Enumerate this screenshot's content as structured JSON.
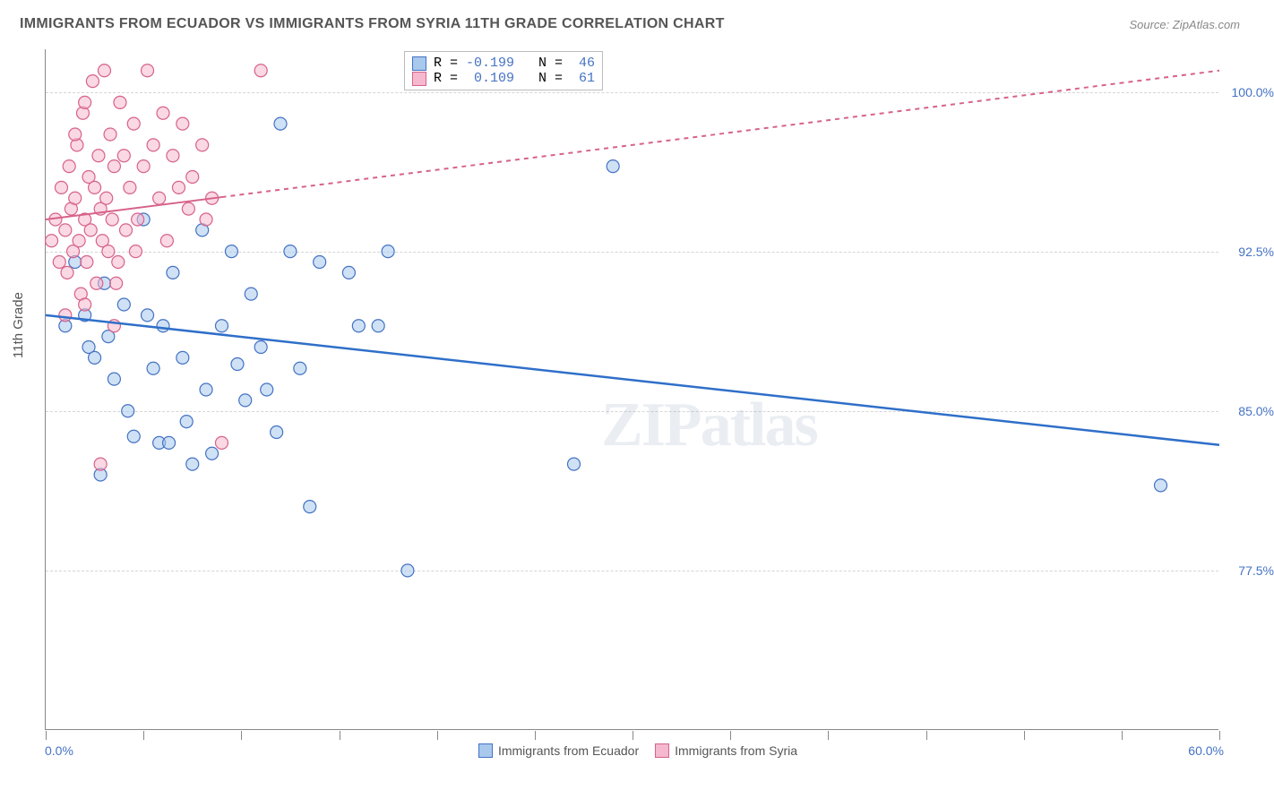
{
  "chart": {
    "title": "IMMIGRANTS FROM ECUADOR VS IMMIGRANTS FROM SYRIA 11TH GRADE CORRELATION CHART",
    "source": "Source: ZipAtlas.com",
    "watermark": "ZIPatlas",
    "type": "scatter",
    "background_color": "#ffffff",
    "grid_color": "#d5d5d5",
    "axis_color": "#888888",
    "label_color": "#555555",
    "tick_value_color": "#4472c4",
    "title_fontsize": 16,
    "label_fontsize": 15,
    "tick_fontsize": 14,
    "x_axis": {
      "min": 0,
      "max": 60,
      "label_min": "0.0%",
      "label_max": "60.0%",
      "tick_positions": [
        0,
        5,
        10,
        15,
        20,
        25,
        30,
        35,
        40,
        45,
        50,
        55,
        60
      ]
    },
    "y_axis": {
      "label": "11th Grade",
      "min": 70,
      "max": 102,
      "gridlines": [
        77.5,
        85.0,
        92.5,
        100.0
      ],
      "gridline_labels": [
        "77.5%",
        "85.0%",
        "92.5%",
        "100.0%"
      ]
    },
    "stat_legend": {
      "rows": [
        {
          "swatch_fill": "#a8c8ec",
          "swatch_stroke": "#4472c4",
          "r_label": "R =",
          "r_value": "-0.199",
          "n_label": "N =",
          "n_value": "46"
        },
        {
          "swatch_fill": "#f5b8ce",
          "swatch_stroke": "#d7628a",
          "r_label": "R =",
          "r_value": " 0.109",
          "n_label": "N =",
          "n_value": "61"
        }
      ]
    },
    "bottom_legend": {
      "items": [
        {
          "label": "Immigrants from Ecuador",
          "fill": "#a8c8ec",
          "stroke": "#4472c4"
        },
        {
          "label": "Immigrants from Syria",
          "fill": "#f5b8ce",
          "stroke": "#d7628a"
        }
      ]
    },
    "series": [
      {
        "name": "Immigrants from Ecuador",
        "fill": "#a8c8ec",
        "fill_opacity": 0.55,
        "stroke": "#4472c4",
        "stroke_width": 1.2,
        "marker_radius": 7,
        "regression": {
          "x1": 0,
          "y1": 89.5,
          "x2": 60,
          "y2": 83.4,
          "color": "#2f6fc9",
          "width": 2.5,
          "dash_after_x": null
        },
        "points": [
          [
            1.0,
            89.0
          ],
          [
            1.5,
            92.0
          ],
          [
            2.0,
            89.5
          ],
          [
            2.2,
            88.0
          ],
          [
            2.5,
            87.5
          ],
          [
            3.0,
            91.0
          ],
          [
            3.2,
            88.5
          ],
          [
            3.5,
            86.5
          ],
          [
            4.0,
            90.0
          ],
          [
            4.2,
            85.0
          ],
          [
            4.5,
            83.8
          ],
          [
            5.0,
            94.0
          ],
          [
            5.2,
            89.5
          ],
          [
            5.5,
            87.0
          ],
          [
            5.8,
            83.5
          ],
          [
            6.0,
            89.0
          ],
          [
            6.5,
            91.5
          ],
          [
            7.0,
            87.5
          ],
          [
            7.2,
            84.5
          ],
          [
            7.5,
            82.5
          ],
          [
            8.0,
            93.5
          ],
          [
            8.2,
            86.0
          ],
          [
            8.5,
            83.0
          ],
          [
            9.0,
            89.0
          ],
          [
            9.5,
            92.5
          ],
          [
            9.8,
            87.2
          ],
          [
            10.2,
            85.5
          ],
          [
            10.5,
            90.5
          ],
          [
            11.0,
            88.0
          ],
          [
            11.3,
            86.0
          ],
          [
            11.8,
            84.0
          ],
          [
            12.0,
            98.5
          ],
          [
            12.5,
            92.5
          ],
          [
            13.0,
            87.0
          ],
          [
            13.5,
            80.5
          ],
          [
            14.0,
            92.0
          ],
          [
            15.5,
            91.5
          ],
          [
            16.0,
            89.0
          ],
          [
            17.0,
            89.0
          ],
          [
            17.5,
            92.5
          ],
          [
            18.5,
            77.5
          ],
          [
            27.0,
            82.5
          ],
          [
            29.0,
            96.5
          ],
          [
            57.0,
            81.5
          ],
          [
            2.8,
            82.0
          ],
          [
            6.3,
            83.5
          ]
        ]
      },
      {
        "name": "Immigrants from Syria",
        "fill": "#f5b8ce",
        "fill_opacity": 0.55,
        "stroke": "#d7628a",
        "stroke_width": 1.2,
        "marker_radius": 7,
        "regression": {
          "x1": 0,
          "y1": 94.0,
          "x2": 60,
          "y2": 101.0,
          "color": "#d7628a",
          "width": 2,
          "dash_after_x": 9
        },
        "points": [
          [
            0.3,
            93.0
          ],
          [
            0.5,
            94.0
          ],
          [
            0.7,
            92.0
          ],
          [
            0.8,
            95.5
          ],
          [
            1.0,
            93.5
          ],
          [
            1.1,
            91.5
          ],
          [
            1.2,
            96.5
          ],
          [
            1.3,
            94.5
          ],
          [
            1.4,
            92.5
          ],
          [
            1.5,
            95.0
          ],
          [
            1.6,
            97.5
          ],
          [
            1.7,
            93.0
          ],
          [
            1.8,
            90.5
          ],
          [
            1.9,
            99.0
          ],
          [
            2.0,
            94.0
          ],
          [
            2.1,
            92.0
          ],
          [
            2.2,
            96.0
          ],
          [
            2.3,
            93.5
          ],
          [
            2.4,
            100.5
          ],
          [
            2.5,
            95.5
          ],
          [
            2.6,
            91.0
          ],
          [
            2.7,
            97.0
          ],
          [
            2.8,
            94.5
          ],
          [
            2.9,
            93.0
          ],
          [
            3.0,
            101.0
          ],
          [
            3.1,
            95.0
          ],
          [
            3.2,
            92.5
          ],
          [
            3.3,
            98.0
          ],
          [
            3.4,
            94.0
          ],
          [
            3.5,
            96.5
          ],
          [
            3.6,
            91.0
          ],
          [
            3.8,
            99.5
          ],
          [
            4.0,
            97.0
          ],
          [
            4.1,
            93.5
          ],
          [
            4.3,
            95.5
          ],
          [
            4.5,
            98.5
          ],
          [
            4.7,
            94.0
          ],
          [
            5.0,
            96.5
          ],
          [
            5.2,
            101.0
          ],
          [
            5.5,
            97.5
          ],
          [
            5.8,
            95.0
          ],
          [
            6.0,
            99.0
          ],
          [
            6.2,
            93.0
          ],
          [
            6.5,
            97.0
          ],
          [
            6.8,
            95.5
          ],
          [
            7.0,
            98.5
          ],
          [
            7.3,
            94.5
          ],
          [
            7.5,
            96.0
          ],
          [
            8.0,
            97.5
          ],
          [
            8.2,
            94.0
          ],
          [
            8.5,
            95.0
          ],
          [
            1.0,
            89.5
          ],
          [
            2.0,
            90.0
          ],
          [
            3.5,
            89.0
          ],
          [
            1.5,
            98.0
          ],
          [
            2.0,
            99.5
          ],
          [
            2.8,
            82.5
          ],
          [
            9.0,
            83.5
          ],
          [
            4.6,
            92.5
          ],
          [
            3.7,
            92.0
          ],
          [
            11.0,
            101.0
          ]
        ]
      }
    ]
  }
}
